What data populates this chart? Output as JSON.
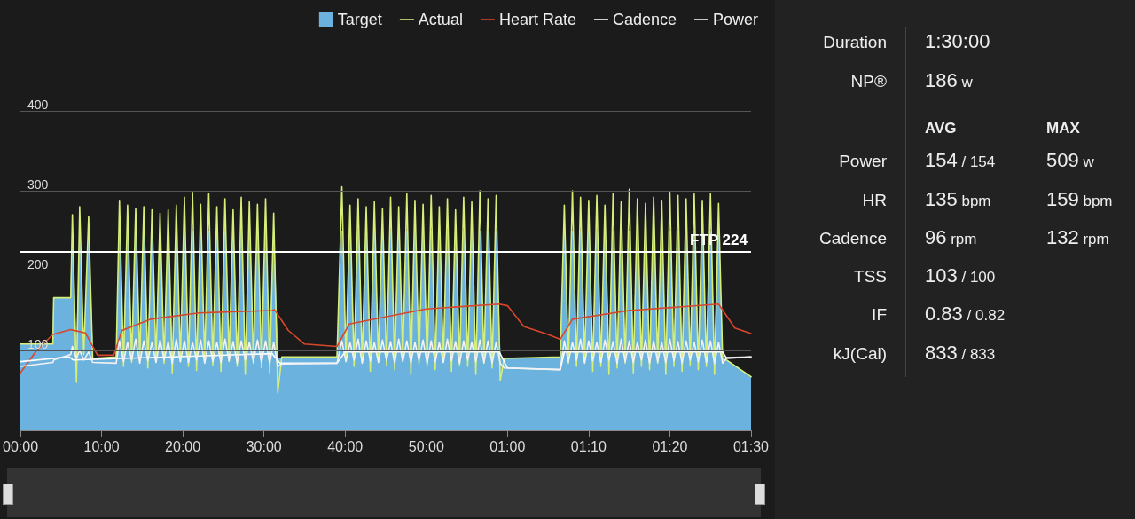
{
  "chart_data": [
    {
      "type": "line",
      "legend": "top right",
      "grid": "y",
      "marker": "none",
      "line_style": "solid",
      "x": [
        0,
        4,
        4.1,
        6.2,
        6.4,
        6.9,
        7.3,
        7.8,
        8.4,
        8.9,
        11.8,
        12.2,
        12.7,
        13.2,
        13.7,
        14.2,
        14.7,
        15.2,
        15.7,
        16.2,
        16.7,
        17.2,
        17.7,
        18.2,
        18.7,
        19.2,
        19.7,
        20.2,
        20.7,
        21.2,
        21.7,
        22.2,
        22.7,
        23.2,
        23.7,
        24.2,
        24.7,
        25.2,
        25.7,
        26.2,
        26.7,
        27.2,
        27.7,
        28.2,
        28.7,
        29.2,
        29.7,
        30.2,
        30.7,
        31.2,
        31.7,
        32.2,
        39.0,
        39.6,
        40.1,
        40.6,
        41.1,
        41.6,
        42.1,
        42.6,
        43.1,
        43.6,
        44.1,
        44.6,
        45.1,
        45.6,
        46.1,
        46.6,
        47.1,
        47.6,
        48.1,
        48.6,
        49.1,
        49.6,
        50.1,
        50.6,
        51.1,
        51.6,
        52.1,
        52.6,
        53.1,
        53.6,
        54.1,
        54.6,
        55.1,
        55.6,
        56.1,
        56.6,
        57.1,
        57.6,
        58.1,
        58.6,
        59.1,
        59.6,
        66.5,
        67.0,
        67.5,
        68.0,
        68.5,
        69.0,
        69.5,
        70.0,
        70.5,
        71.0,
        71.5,
        72.0,
        72.5,
        73.0,
        73.5,
        74.0,
        74.5,
        75.0,
        75.5,
        76.0,
        76.5,
        77.0,
        77.5,
        78.0,
        78.5,
        79.0,
        79.5,
        80.0,
        80.5,
        81.0,
        81.5,
        82.0,
        82.5,
        83.0,
        83.5,
        84.0,
        84.5,
        85.0,
        85.5,
        86.0,
        86.5,
        87.0,
        90
      ],
      "xlim": [
        0,
        90
      ],
      "xticks": [
        {
          "value": 0,
          "label": "00:00"
        },
        {
          "value": 10,
          "label": "10:00"
        },
        {
          "value": 20,
          "label": "20:00"
        },
        {
          "value": 30,
          "label": "30:00"
        },
        {
          "value": 40,
          "label": "40:00"
        },
        {
          "value": 50,
          "label": "50:00"
        },
        {
          "value": 60,
          "label": "01:00"
        },
        {
          "value": 70,
          "label": "01:10"
        },
        {
          "value": 80,
          "label": "01:20"
        },
        {
          "value": 90,
          "label": "01:30"
        }
      ],
      "ylim": [
        0,
        400
      ],
      "yticks": [
        100,
        200,
        300,
        400
      ],
      "ref_lines": [
        {
          "axis": "y",
          "value": 224,
          "label": "FTP 224",
          "color": "#ffffff"
        }
      ],
      "series": [
        {
          "name": "Target",
          "type": "area",
          "color": "#6cb2de",
          "values": [
            108,
            108,
            166,
            166,
            250,
            90,
            250,
            90,
            250,
            90,
            90,
            250,
            90,
            250,
            90,
            250,
            90,
            250,
            90,
            250,
            90,
            250,
            90,
            250,
            90,
            250,
            90,
            250,
            90,
            250,
            90,
            250,
            90,
            250,
            90,
            250,
            90,
            250,
            90,
            250,
            90,
            250,
            90,
            250,
            90,
            250,
            90,
            250,
            90,
            250,
            90,
            90,
            90,
            250,
            90,
            250,
            90,
            250,
            90,
            250,
            90,
            250,
            90,
            250,
            90,
            250,
            90,
            250,
            90,
            250,
            90,
            250,
            90,
            250,
            90,
            250,
            90,
            250,
            90,
            250,
            90,
            250,
            90,
            250,
            90,
            250,
            90,
            250,
            90,
            250,
            90,
            250,
            90,
            90,
            90,
            250,
            90,
            250,
            90,
            250,
            90,
            250,
            90,
            250,
            90,
            250,
            90,
            250,
            90,
            250,
            90,
            250,
            90,
            250,
            90,
            250,
            90,
            250,
            90,
            250,
            90,
            250,
            90,
            250,
            90,
            250,
            90,
            250,
            90,
            250,
            90,
            250,
            90,
            250,
            90,
            88,
            67
          ]
        },
        {
          "name": "Actual",
          "color": "#d4ee78",
          "values": [
            108,
            108,
            166,
            166,
            270,
            60,
            280,
            95,
            268,
            90,
            92,
            288,
            80,
            282,
            85,
            278,
            88,
            280,
            78,
            276,
            86,
            272,
            84,
            276,
            72,
            282,
            86,
            292,
            80,
            298,
            75,
            283,
            86,
            296,
            82,
            280,
            74,
            290,
            86,
            276,
            80,
            292,
            70,
            286,
            84,
            283,
            78,
            290,
            72,
            272,
            47,
            92,
            92,
            305,
            88,
            282,
            80,
            290,
            85,
            280,
            74,
            286,
            86,
            278,
            82,
            292,
            76,
            280,
            88,
            296,
            70,
            288,
            84,
            283,
            80,
            294,
            76,
            280,
            86,
            290,
            74,
            276,
            82,
            292,
            80,
            286,
            70,
            300,
            84,
            290,
            78,
            294,
            62,
            90,
            92,
            282,
            84,
            300,
            80,
            292,
            86,
            288,
            74,
            294,
            80,
            282,
            70,
            296,
            78,
            286,
            84,
            302,
            72,
            290,
            80,
            284,
            76,
            292,
            84,
            288,
            70,
            298,
            80,
            294,
            74,
            290,
            82,
            296,
            76,
            288,
            80,
            296,
            70,
            284,
            88,
            88,
            67
          ]
        },
        {
          "name": "Heart Rate",
          "color": "#d9472b",
          "x": [
            0,
            2,
            4,
            6.2,
            8,
            9.5,
            11.5,
            12.5,
            16,
            22,
            31,
            31.3,
            33,
            35,
            39,
            40.5,
            50,
            59,
            60,
            62,
            65,
            66.5,
            68,
            75,
            86,
            88,
            90
          ],
          "values": [
            72,
            100,
            120,
            126,
            122,
            94,
            94,
            125,
            139,
            147,
            150,
            151,
            125,
            108,
            105,
            133,
            152,
            158,
            156,
            130,
            120,
            114,
            139,
            150,
            158,
            128,
            121
          ]
        },
        {
          "name": "Cadence",
          "color": "#ffffff",
          "x": [
            0,
            6,
            6.5,
            31,
            32,
            39,
            40,
            59,
            60,
            66.5,
            67,
            86.5,
            87,
            90
          ],
          "values": [
            86,
            92,
            88,
            96,
            84,
            84,
            98,
            98,
            78,
            76,
            98,
            98,
            90,
            92
          ]
        },
        {
          "name": "Power",
          "color": "#f2f2f2",
          "values": [
            80,
            85,
            88,
            95,
            105,
            90,
            100,
            88,
            98,
            85,
            84,
            112,
            86,
            110,
            88,
            114,
            84,
            112,
            87,
            110,
            85,
            113,
            88,
            111,
            84,
            114,
            86,
            112,
            85,
            110,
            88,
            113,
            84,
            112,
            86,
            110,
            85,
            114,
            87,
            111,
            84,
            112,
            88,
            110,
            86,
            113,
            85,
            112,
            84,
            110,
            80,
            83,
            84,
            112,
            86,
            110,
            88,
            114,
            84,
            112,
            87,
            110,
            85,
            113,
            88,
            111,
            84,
            114,
            86,
            112,
            85,
            110,
            88,
            113,
            84,
            112,
            86,
            110,
            85,
            114,
            87,
            111,
            84,
            112,
            88,
            110,
            86,
            113,
            85,
            112,
            84,
            110,
            84,
            78,
            76,
            112,
            86,
            110,
            88,
            114,
            84,
            112,
            87,
            110,
            85,
            113,
            88,
            111,
            84,
            114,
            86,
            112,
            85,
            110,
            88,
            113,
            84,
            112,
            86,
            110,
            85,
            114,
            87,
            111,
            84,
            112,
            88,
            110,
            86,
            113,
            85,
            112,
            84,
            110,
            84,
            91,
            92
          ]
        }
      ]
    },
    {
      "type": "other",
      "annotations": [
        "Duration",
        "1:30:00",
        "NP®",
        "186 w",
        "AVG",
        "MAX",
        "Power",
        "154 / 154",
        "509 w",
        "HR",
        "135 bpm",
        "159 bpm",
        "Cadence",
        "96 rpm",
        "132 rpm",
        "TSS",
        "103 / 100",
        "IF",
        "0.83 / 0.82",
        "kJ(Cal)",
        "833 / 833"
      ]
    }
  ]
}
